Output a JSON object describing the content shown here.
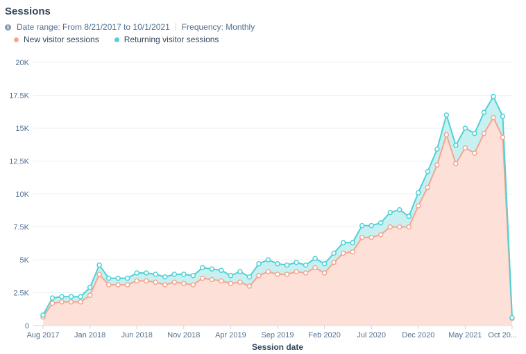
{
  "title": "Sessions",
  "meta": {
    "date_range": "Date range: From 8/21/2017 to 10/1/2021",
    "frequency": "Frequency: Monthly"
  },
  "colors": {
    "new_fill": "#fde0d8",
    "new_line": "#f3a58f",
    "returning_fill": "#c9f0f1",
    "returning_line": "#4fd1d5"
  },
  "chart_data": {
    "type": "area",
    "stacked": true,
    "xlabel": "Session date",
    "ylabel": "",
    "ylim": [
      0,
      20000
    ],
    "yticks": [
      0,
      2500,
      5000,
      7500,
      10000,
      12500,
      15000,
      17500,
      20000
    ],
    "ytick_labels": [
      "0",
      "2.5K",
      "5K",
      "7.5K",
      "10K",
      "12.5K",
      "15K",
      "17.5K",
      "20K"
    ],
    "xtick_labels": [
      {
        "index": 0,
        "label": "Aug 2017"
      },
      {
        "index": 5,
        "label": "Jan 2018"
      },
      {
        "index": 10,
        "label": "Jun 2018"
      },
      {
        "index": 15,
        "label": "Nov 2018"
      },
      {
        "index": 20,
        "label": "Apr 2019"
      },
      {
        "index": 25,
        "label": "Sep 2019"
      },
      {
        "index": 30,
        "label": "Feb 2020"
      },
      {
        "index": 35,
        "label": "Jul 2020"
      },
      {
        "index": 40,
        "label": "Dec 2020"
      },
      {
        "index": 45,
        "label": "May 2021"
      },
      {
        "index": 50,
        "label": "Oct 20..."
      }
    ],
    "legend": "top-left",
    "grid": true,
    "series": [
      {
        "name": "New visitor sessions",
        "values": [
          650,
          1700,
          1800,
          1800,
          1800,
          2300,
          3900,
          3100,
          3100,
          3100,
          3400,
          3400,
          3300,
          3100,
          3300,
          3200,
          3100,
          3600,
          3500,
          3400,
          3200,
          3300,
          3000,
          3800,
          4100,
          3900,
          3900,
          4100,
          4000,
          4400,
          4000,
          4800,
          5500,
          5600,
          6700,
          6700,
          6900,
          7500,
          7500,
          7500,
          9100,
          10500,
          12200,
          14500,
          12300,
          13500,
          13100,
          14600,
          15800,
          14300,
          550
        ]
      },
      {
        "name": "Returning visitor sessions",
        "values": [
          150,
          400,
          400,
          400,
          400,
          600,
          700,
          500,
          500,
          500,
          600,
          600,
          600,
          600,
          600,
          700,
          700,
          800,
          800,
          800,
          600,
          800,
          700,
          900,
          900,
          800,
          700,
          700,
          600,
          700,
          700,
          700,
          800,
          700,
          900,
          900,
          900,
          1100,
          1300,
          800,
          1000,
          1200,
          1200,
          1500,
          1400,
          1500,
          1500,
          1600,
          1600,
          1600,
          50
        ]
      }
    ]
  }
}
